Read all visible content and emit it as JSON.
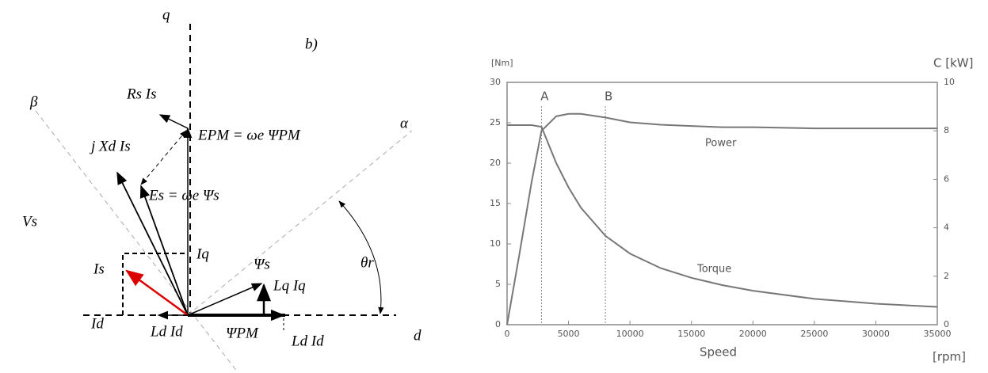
{
  "diagram": {
    "labels": [
      "q",
      "b)",
      "β",
      "α",
      "Rs Is",
      "EPM = ωe ΨPM",
      "j Xd Is",
      "Es = ωe Ψs",
      "Vs",
      "Iq",
      "Is",
      "θr",
      "Ψs",
      "Lq Iq",
      "Id",
      "Ld Id",
      "ΨPM",
      "Ld Id",
      "d"
    ]
  },
  "chart_data": {
    "type": "line",
    "y_label": "[Nm]",
    "y2_label": "C [kW]",
    "x_label": "Speed",
    "x_unit": "[rpm]",
    "x": [
      0,
      1000,
      2000,
      2800,
      4000,
      5000,
      6000,
      8000,
      10000,
      12500,
      15000,
      17500,
      20000,
      25000,
      30000,
      35000
    ],
    "series": [
      {
        "name": "Torque",
        "color": "#777777",
        "values": [
          24.7,
          24.7,
          24.7,
          24.5,
          20,
          17,
          14.5,
          11,
          8.8,
          7,
          5.8,
          4.9,
          4.2,
          3.2,
          2.6,
          2.2
        ]
      },
      {
        "name": "Power",
        "color": "#777777",
        "axis": "y2",
        "values": [
          0,
          2.9,
          5.9,
          8.0,
          8.6,
          8.7,
          8.7,
          8.55,
          8.35,
          8.25,
          8.2,
          8.15,
          8.15,
          8.1,
          8.1,
          8.1
        ]
      }
    ],
    "markers": [
      {
        "label": "A",
        "x": 2800
      },
      {
        "label": "B",
        "x": 8000
      }
    ],
    "xlim": [
      0,
      35000
    ],
    "xticks": [
      0,
      5000,
      10000,
      15000,
      20000,
      25000,
      30000,
      35000
    ],
    "ylim": [
      0,
      30
    ],
    "yticks": [
      0,
      5,
      10,
      15,
      20,
      25,
      30
    ],
    "y2lim": [
      0,
      10
    ],
    "y2ticks": [
      0,
      2,
      4,
      6,
      8,
      10
    ]
  }
}
